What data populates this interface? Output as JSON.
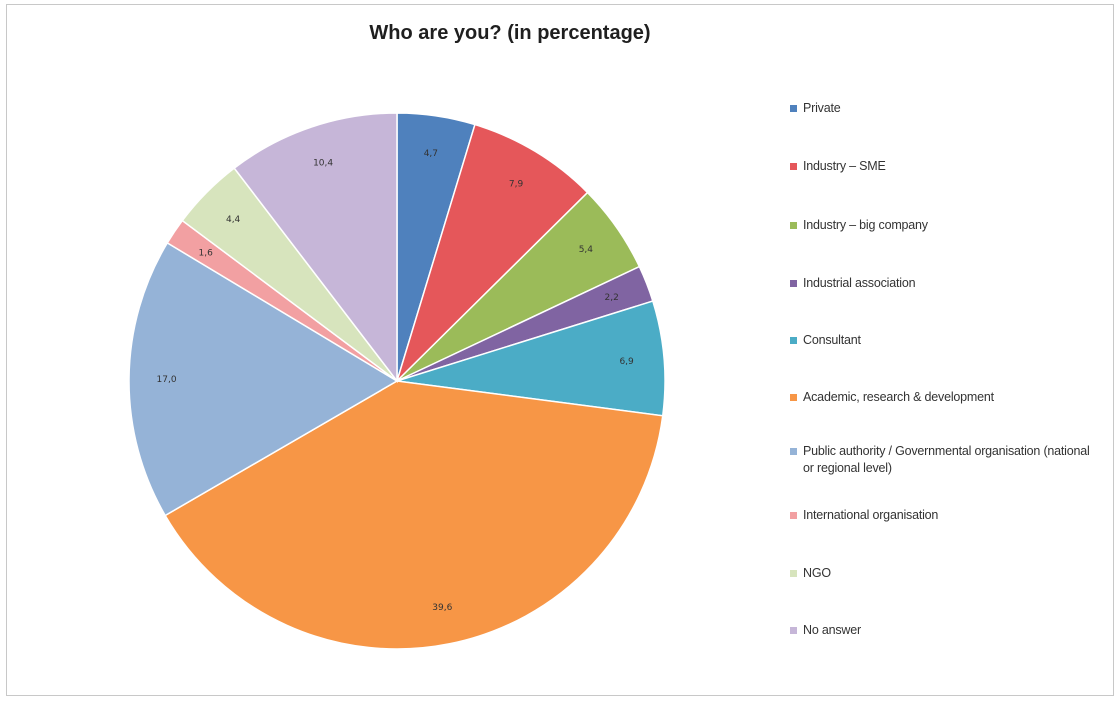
{
  "chart_data": {
    "type": "pie",
    "title": "Who are you? (in percentage)",
    "categories": [
      "Private",
      "Industry – SME",
      "Industry – big company",
      "Industrial association",
      "Consultant",
      "Academic, research & development",
      "Public authority / Governmental organisation (national or regional level)",
      "International organisation",
      "NGO",
      "No answer"
    ],
    "values": [
      4.7,
      7.9,
      5.4,
      2.2,
      6.9,
      39.6,
      17.0,
      1.6,
      4.4,
      10.4
    ],
    "value_labels": [
      "4,7",
      "7,9",
      "5,4",
      "2,2",
      "6,9",
      "39,6",
      "17,0",
      "1,6",
      "4,4",
      "10,4"
    ],
    "colors": [
      "#4f81bd",
      "#e5575a",
      "#9bbb59",
      "#8064a2",
      "#4bacc6",
      "#f79646",
      "#95b3d7",
      "#f2a0a2",
      "#d7e4bd",
      "#c6b6d8"
    ],
    "legend_position": "right"
  }
}
